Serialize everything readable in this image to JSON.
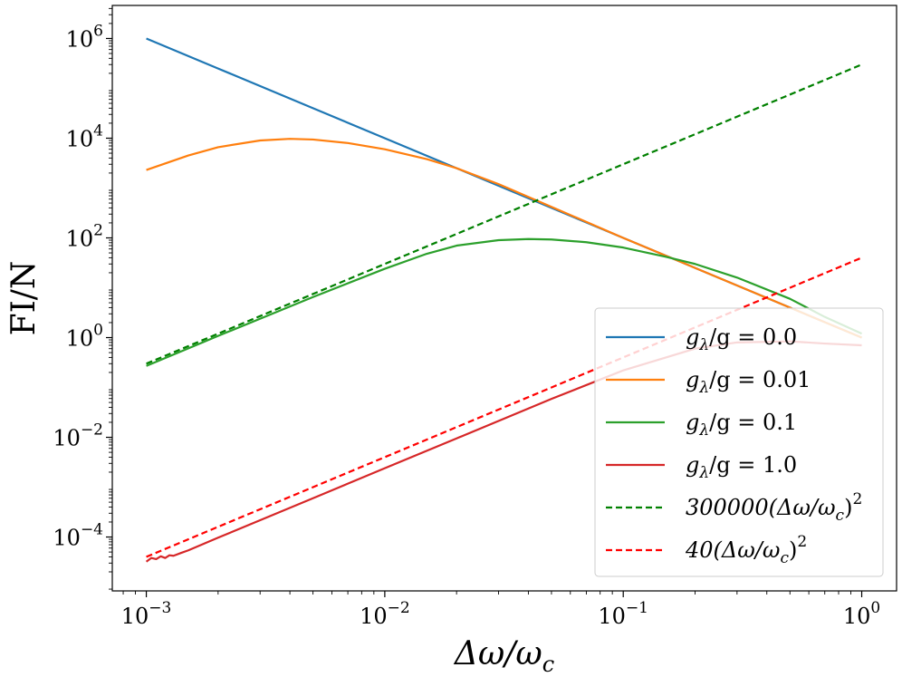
{
  "chart_data": {
    "type": "line",
    "title": "",
    "xlabel": "Δω/ω_c",
    "ylabel": "FI/N",
    "xscale": "log",
    "yscale": "log",
    "xlim": [
      0.00072,
      1.4
    ],
    "ylim": [
      8.3e-06,
      4600000
    ],
    "xticks": [
      {
        "value": 0.001,
        "base": "10",
        "exp": "−3"
      },
      {
        "value": 0.01,
        "base": "10",
        "exp": "−2"
      },
      {
        "value": 0.1,
        "base": "10",
        "exp": "−1"
      },
      {
        "value": 1,
        "base": "10",
        "exp": "0"
      }
    ],
    "yticks": [
      {
        "value": 0.0001,
        "base": "10",
        "exp": "−4"
      },
      {
        "value": 0.01,
        "base": "10",
        "exp": "−2"
      },
      {
        "value": 1,
        "base": "10",
        "exp": "0"
      },
      {
        "value": 100,
        "base": "10",
        "exp": "2"
      },
      {
        "value": 10000,
        "base": "10",
        "exp": "4"
      },
      {
        "value": 1000000,
        "base": "10",
        "exp": "6"
      }
    ],
    "legend_position": "lower-right",
    "series": [
      {
        "name": "g_λ/g = 0.0",
        "label_parts": [
          "g",
          "λ",
          "/g = 0.0"
        ],
        "color": "#1f77b4",
        "style": "solid",
        "x": [
          0.001,
          0.002,
          0.005,
          0.01,
          0.02,
          0.05,
          0.1,
          0.2,
          0.5,
          1.0
        ],
        "y": [
          1000000,
          250000,
          40000,
          10000,
          2500,
          400,
          100,
          25,
          4,
          1
        ]
      },
      {
        "name": "g_λ/g = 0.01",
        "label_parts": [
          "g",
          "λ",
          "/g = 0.01"
        ],
        "color": "#ff7f0e",
        "style": "solid",
        "x": [
          0.001,
          0.0015,
          0.002,
          0.003,
          0.004,
          0.005,
          0.007,
          0.01,
          0.015,
          0.02,
          0.03,
          0.05,
          0.1,
          0.2,
          0.5,
          1.0
        ],
        "y": [
          2300,
          4500,
          6600,
          9000,
          9700,
          9400,
          8000,
          6000,
          3800,
          2500,
          1200,
          420,
          100,
          25,
          4,
          1
        ]
      },
      {
        "name": "g_λ/g = 0.1",
        "label_parts": [
          "g",
          "λ",
          "/g = 0.1"
        ],
        "color": "#2ca02c",
        "style": "solid",
        "x": [
          0.001,
          0.002,
          0.005,
          0.01,
          0.015,
          0.02,
          0.03,
          0.04,
          0.05,
          0.07,
          0.1,
          0.15,
          0.2,
          0.3,
          0.5,
          0.7,
          1.0
        ],
        "y": [
          0.27,
          1.08,
          6.5,
          24,
          48,
          70,
          90,
          95,
          93,
          82,
          64,
          42,
          30,
          16,
          6,
          2.6,
          1.2
        ]
      },
      {
        "name": "g_λ/g = 1.0",
        "label_parts": [
          "g",
          "λ",
          "/g = 1.0"
        ],
        "color": "#d62728",
        "style": "solid",
        "x": [
          0.001,
          0.00105,
          0.0011,
          0.00115,
          0.0012,
          0.00125,
          0.0013,
          0.0014,
          0.0015,
          0.002,
          0.005,
          0.01,
          0.02,
          0.05,
          0.1,
          0.2,
          0.3,
          0.5,
          0.7,
          1.0
        ],
        "y": [
          3.2e-05,
          3.8e-05,
          3.6e-05,
          4.1e-05,
          3.8e-05,
          4.3e-05,
          4.2e-05,
          4.8e-05,
          5.4e-05,
          9.7e-05,
          0.0006,
          0.0024,
          0.0095,
          0.059,
          0.22,
          0.6,
          0.8,
          0.84,
          0.76,
          0.7
        ]
      },
      {
        "name": "300000(Δω/ω_c)^2",
        "label_parts": [
          "300000(Δω/ω",
          "c",
          ")",
          "2"
        ],
        "color": "#008000",
        "style": "dashed",
        "x": [
          0.001,
          1.0
        ],
        "y": [
          0.3,
          300000
        ]
      },
      {
        "name": "40(Δω/ω_c)^2",
        "label_parts": [
          "40(Δω/ω",
          "c",
          ")",
          "2"
        ],
        "color": "#ff0000",
        "style": "dashed",
        "x": [
          0.001,
          1.0
        ],
        "y": [
          4e-05,
          40
        ]
      }
    ]
  }
}
